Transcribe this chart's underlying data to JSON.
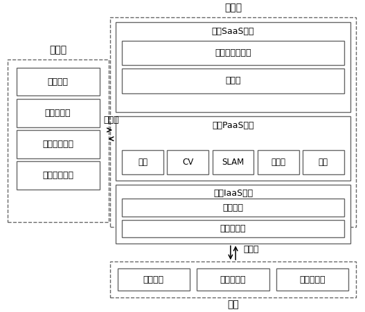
{
  "bg_color": "#ffffff",
  "box_edge_color": "#666666",
  "dashed_edge_color": "#666666",
  "text_color": "#000000",
  "zhongxinyun_label": "中心云",
  "zhongxinyun_boxes": [
    "后台管理",
    "中心云渲染",
    "用户数据处理",
    "交互数据处理"
  ],
  "bianyunyun_label": "边缘云",
  "saas_label": "边缘SaaS平台",
  "saas_boxes": [
    "立体教学场教学",
    "虚拟机"
  ],
  "paas_label": "边缘PaaS平台",
  "paas_boxes": [
    "渲染",
    "CV",
    "SLAM",
    "编解码",
    "拼接"
  ],
  "iaas_label": "边缘IaaS平台",
  "iaas_boxes": [
    "虚拟化层",
    "硬件资源层"
  ],
  "data_flow_label": "数据流",
  "data_flow_label2": "数据流",
  "terminal_label": "终端",
  "terminal_boxes": [
    "教师终端",
    "学习者终端",
    "管理者终端"
  ]
}
